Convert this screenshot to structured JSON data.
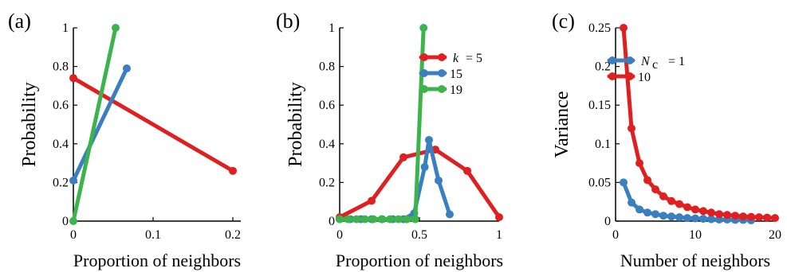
{
  "chart_data": [
    {
      "type": "line",
      "panel_label": "(a)",
      "xlabel": "Proportion of neighbors",
      "ylabel": "Probability",
      "xlim": [
        0,
        0.21
      ],
      "ylim": [
        0,
        1
      ],
      "xticks": [
        0,
        0.1,
        0.2
      ],
      "xtick_labels": [
        "0",
        "0.1",
        "0.2"
      ],
      "yticks": [
        0,
        0.2,
        0.4,
        0.6,
        0.8,
        1
      ],
      "ytick_labels": [
        "0",
        "0.2",
        "0.4",
        "0.6",
        "0.8",
        "1"
      ],
      "grid": false,
      "series": [
        {
          "color": "#e02020",
          "x": [
            0,
            0.2
          ],
          "y": [
            0.74,
            0.26
          ]
        },
        {
          "color": "#3a7fc0",
          "x": [
            0,
            0.067
          ],
          "y": [
            0.21,
            0.79
          ]
        },
        {
          "color": "#3cb44b",
          "x": [
            0,
            0.053
          ],
          "y": [
            0.0,
            1.0
          ]
        }
      ]
    },
    {
      "type": "line",
      "panel_label": "(b)",
      "xlabel": "Proportion of neighbors",
      "ylabel": "Probability",
      "xlim": [
        0,
        1
      ],
      "ylim": [
        0,
        1
      ],
      "xticks": [
        0,
        0.5,
        1
      ],
      "xtick_labels": [
        "0",
        "0.5",
        "1"
      ],
      "yticks": [
        0,
        0.2,
        0.4,
        0.6,
        0.8,
        1
      ],
      "ytick_labels": [
        "0",
        "0.2",
        "0.4",
        "0.6",
        "0.8",
        "1"
      ],
      "grid": false,
      "legend_position": "top-right",
      "legend_prefix": "k",
      "series": [
        {
          "name": "= 5",
          "color": "#e02020",
          "x": [
            0,
            0.2,
            0.4,
            0.6,
            0.8,
            1.0
          ],
          "y": [
            0.02,
            0.105,
            0.33,
            0.37,
            0.26,
            0.02
          ]
        },
        {
          "name": "15",
          "color": "#3a7fc0",
          "x": [
            0,
            0.067,
            0.133,
            0.2,
            0.267,
            0.333,
            0.4,
            0.467,
            0.533,
            0.56,
            0.62,
            0.69
          ],
          "y": [
            0.01,
            0.01,
            0.01,
            0.01,
            0.01,
            0.01,
            0.01,
            0.04,
            0.28,
            0.42,
            0.21,
            0.035
          ]
        },
        {
          "name": "19",
          "color": "#3cb44b",
          "x": [
            0,
            0.053,
            0.105,
            0.158,
            0.211,
            0.263,
            0.316,
            0.368,
            0.421,
            0.474,
            0.526
          ],
          "y": [
            0.01,
            0.01,
            0.01,
            0.01,
            0.01,
            0.01,
            0.01,
            0.01,
            0.01,
            0.01,
            1.0
          ]
        }
      ]
    },
    {
      "type": "line",
      "panel_label": "(c)",
      "xlabel": "Number of neighbors",
      "ylabel": "Variance",
      "xlim": [
        0,
        20
      ],
      "ylim": [
        0,
        0.25
      ],
      "xticks": [
        0,
        10,
        20
      ],
      "xtick_labels": [
        "0",
        "10",
        "20"
      ],
      "yticks": [
        0,
        0.05,
        0.1,
        0.15,
        0.2,
        0.25
      ],
      "ytick_labels": [
        "0",
        "0.05",
        "0.1",
        "0.15",
        "0.2",
        "0.25"
      ],
      "grid": false,
      "legend_position": "top-right",
      "legend_prefix": "N",
      "legend_prefix_sub": "c",
      "series": [
        {
          "name": "= 1",
          "color": "#3a7fc0",
          "x": [
            1,
            2,
            3,
            4,
            5,
            6,
            7,
            8,
            9,
            10,
            11,
            12,
            13,
            14,
            15,
            16,
            17
          ],
          "y": [
            0.05,
            0.024,
            0.015,
            0.011,
            0.009,
            0.007,
            0.006,
            0.005,
            0.004,
            0.0035,
            0.003,
            0.0025,
            0.002,
            0.002,
            0.0015,
            0.0015,
            0.001
          ]
        },
        {
          "name": "10",
          "color": "#e02020",
          "x": [
            1,
            2,
            3,
            4,
            5,
            6,
            7,
            8,
            9,
            10,
            11,
            12,
            13,
            14,
            15,
            16,
            17,
            18,
            19,
            20
          ],
          "y": [
            0.25,
            0.12,
            0.075,
            0.053,
            0.041,
            0.032,
            0.026,
            0.022,
            0.018,
            0.015,
            0.013,
            0.011,
            0.009,
            0.008,
            0.007,
            0.006,
            0.0055,
            0.005,
            0.0045,
            0.004
          ]
        }
      ]
    }
  ]
}
